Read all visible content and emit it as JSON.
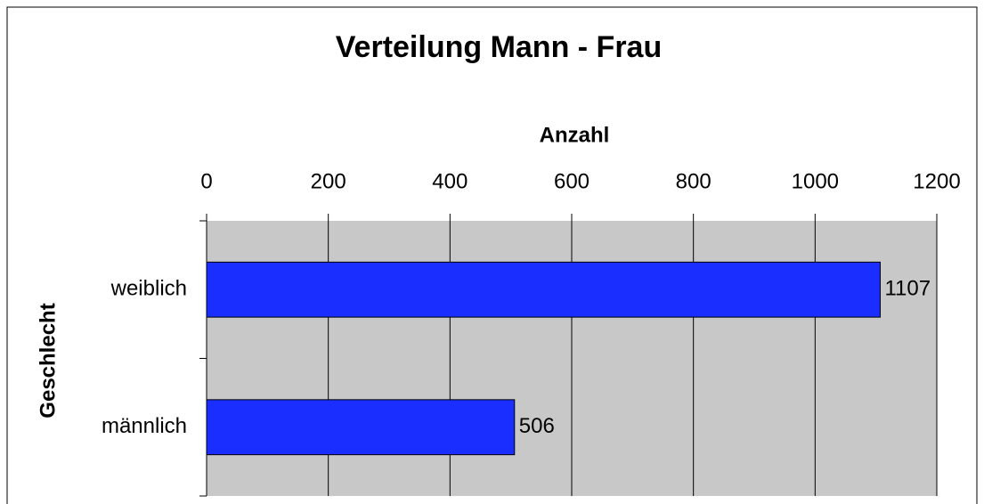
{
  "chart_data": {
    "type": "bar",
    "orientation": "horizontal",
    "title": "Verteilung Mann - Frau",
    "x_label": "Anzahl",
    "y_label": "Geschlecht",
    "categories": [
      "weiblich",
      "männlich"
    ],
    "values": [
      1107,
      506
    ],
    "color": "#1a2eff",
    "xlim": [
      0,
      1200
    ],
    "xticks": [
      0,
      200,
      400,
      600,
      800,
      1000,
      1200
    ],
    "grid": true,
    "plot_background": "#c8c8c8"
  }
}
